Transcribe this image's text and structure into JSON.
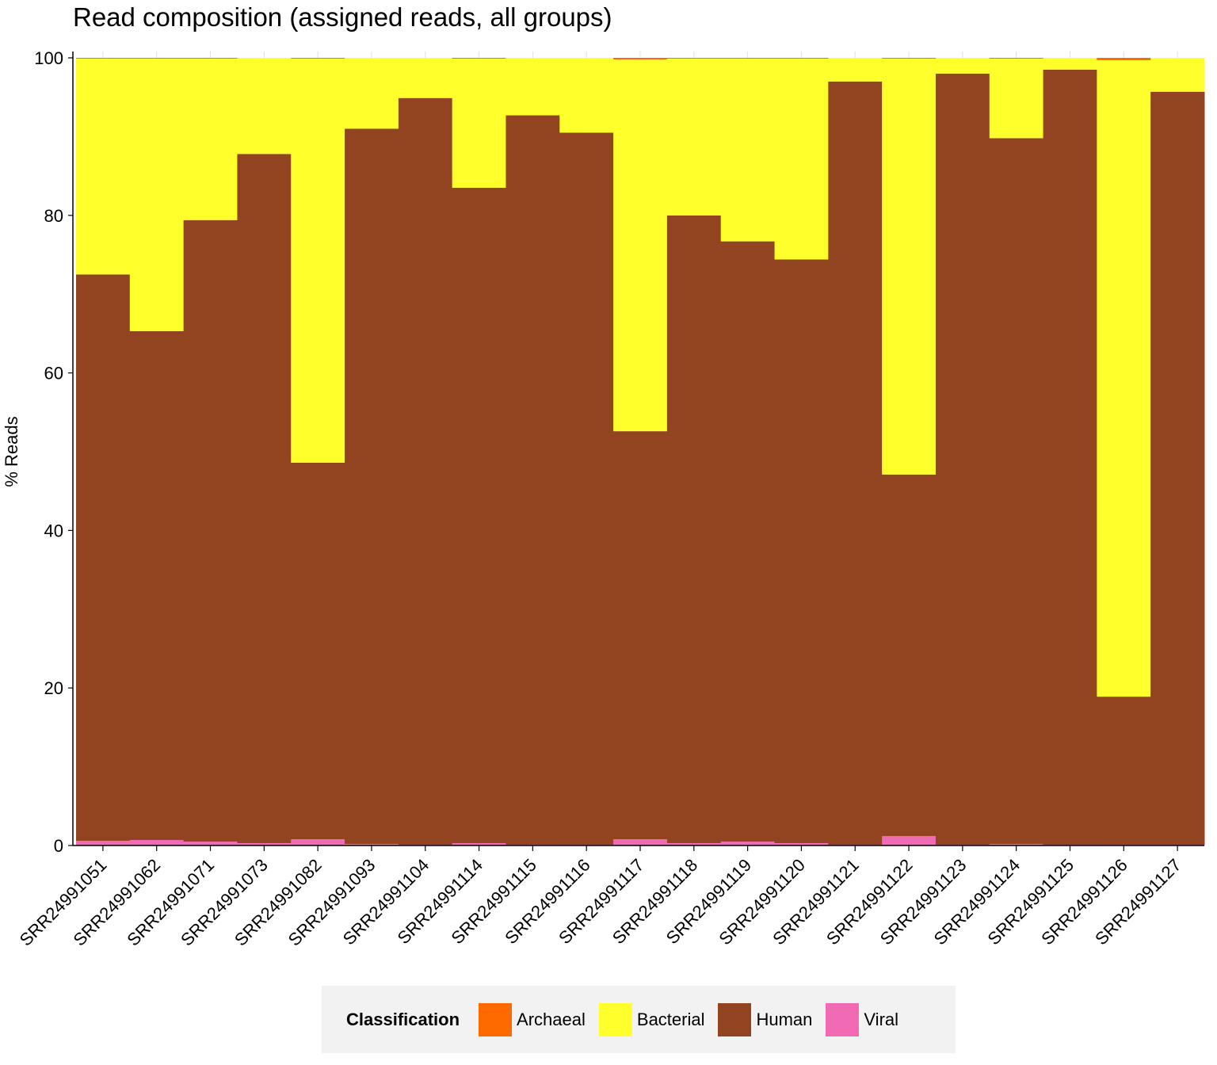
{
  "chart_data": {
    "type": "bar",
    "stacked": true,
    "title": "Read composition (assigned reads, all groups)",
    "xlabel": "",
    "ylabel": "% Reads",
    "ylim": [
      0,
      100
    ],
    "yticks": [
      0,
      20,
      40,
      60,
      80,
      100
    ],
    "grid": false,
    "legend_position": "bottom",
    "legend_title": "Classification",
    "categories": [
      "SRR24991051",
      "SRR24991062",
      "SRR24991071",
      "SRR24991073",
      "SRR24991082",
      "SRR24991093",
      "SRR24991104",
      "SRR24991114",
      "SRR24991115",
      "SRR24991116",
      "SRR24991117",
      "SRR24991118",
      "SRR24991119",
      "SRR24991120",
      "SRR24991121",
      "SRR24991122",
      "SRR24991123",
      "SRR24991124",
      "SRR24991125",
      "SRR24991126",
      "SRR24991127"
    ],
    "series": [
      {
        "name": "Viral",
        "color": "#f06ab4",
        "values": [
          0.6,
          0.7,
          0.5,
          0.3,
          0.8,
          0.2,
          0.1,
          0.3,
          0.1,
          0.1,
          0.8,
          0.3,
          0.5,
          0.3,
          0.1,
          1.2,
          0.1,
          0.2,
          0.1,
          0.1,
          0.1
        ]
      },
      {
        "name": "Human",
        "color": "#924421",
        "values": [
          71.9,
          64.6,
          78.9,
          87.5,
          47.8,
          90.8,
          94.8,
          83.2,
          92.6,
          90.4,
          51.8,
          79.7,
          76.2,
          74.1,
          96.9,
          45.9,
          97.9,
          89.6,
          98.4,
          18.8,
          95.6
        ]
      },
      {
        "name": "Bacterial",
        "color": "#ffff2b",
        "values": [
          27.4,
          34.6,
          20.5,
          12.2,
          51.3,
          9.0,
          5.1,
          16.4,
          7.3,
          9.5,
          47.2,
          19.9,
          23.2,
          25.5,
          3.0,
          52.8,
          2.0,
          10.1,
          1.5,
          80.8,
          4.3
        ]
      },
      {
        "name": "Archaeal",
        "color": "#ff6a00",
        "values": [
          0.1,
          0.1,
          0.1,
          0.0,
          0.1,
          0.0,
          0.0,
          0.1,
          0.0,
          0.0,
          0.2,
          0.1,
          0.1,
          0.1,
          0.0,
          0.1,
          0.0,
          0.1,
          0.0,
          0.3,
          0.0
        ]
      }
    ],
    "legend_order": [
      "Archaeal",
      "Bacterial",
      "Human",
      "Viral"
    ]
  }
}
